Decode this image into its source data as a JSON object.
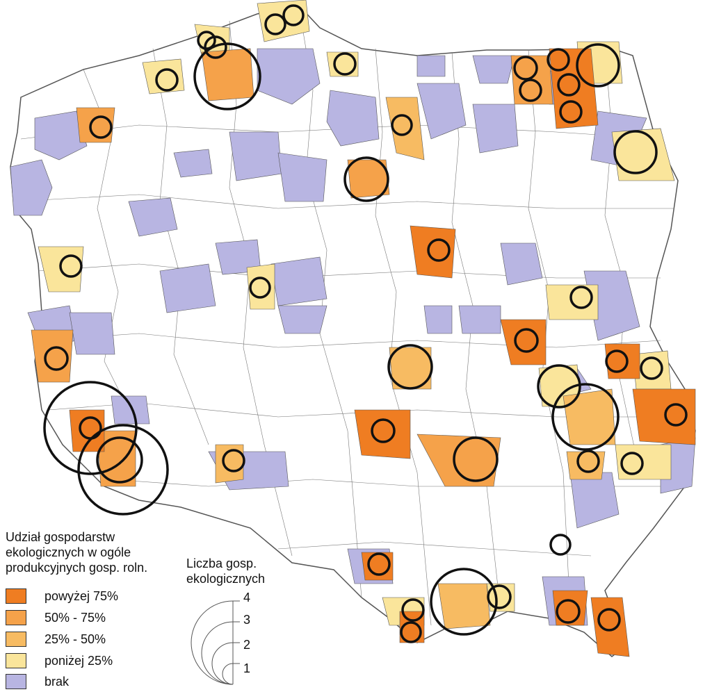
{
  "map": {
    "colors": {
      "above75": "#ef7d22",
      "p50_75": "#f5a24a",
      "p25_50": "#f7bb62",
      "below25": "#fae59b",
      "none": "#b8b5e2",
      "border": "#555555"
    },
    "symbols": "black circles sized by number of organic farms"
  },
  "legend": {
    "share_title_line1": "Udział gospodarstw",
    "share_title_line2": "ekologicznych w ogóle",
    "share_title_line3": "produkcyjnych gosp. roln.",
    "classes": [
      {
        "label": "powyżej 75%",
        "color": "#ef7d22"
      },
      {
        "label": "50% - 75%",
        "color": "#f5a24a"
      },
      {
        "label": "25% - 50%",
        "color": "#f7bb62"
      },
      {
        "label": "poniżej 25%",
        "color": "#fae59b"
      },
      {
        "label": "brak",
        "color": "#b8b5e2"
      }
    ],
    "count_title_line1": "Liczba gosp.",
    "count_title_line2": "ekologicznych",
    "count_values": [
      "4",
      "3",
      "2",
      "1"
    ]
  }
}
